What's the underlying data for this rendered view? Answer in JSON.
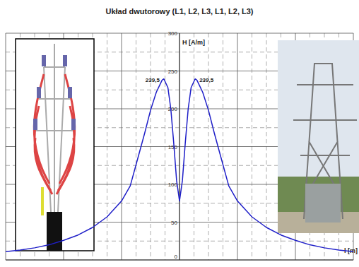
{
  "chart_data": {
    "type": "line",
    "title": "Układ dwutorowy (L1, L2, L3, L1, L2, L3)",
    "y_label": "H [A/m]",
    "x_label": "l [m]",
    "x": [
      -60,
      -55,
      -50,
      -45,
      -40,
      -35,
      -30,
      -25,
      -20,
      -17,
      -14,
      -12,
      -10,
      -8,
      -6,
      -5.4,
      -4,
      -3,
      -2,
      -1,
      0,
      1,
      2,
      3,
      4,
      5.4,
      6,
      8,
      10,
      12,
      14,
      17,
      20,
      25,
      30,
      35,
      40,
      45,
      50,
      55,
      60
    ],
    "series": [
      {
        "color": "#1f1fc8",
        "values": [
          11,
          13,
          16,
          20,
          26,
          33,
          43,
          57,
          78,
          98,
          140,
          168,
          198,
          222,
          238,
          239.5,
          228,
          200,
          155,
          105,
          78,
          105,
          155,
          200,
          228,
          239.5,
          238,
          222,
          198,
          168,
          140,
          98,
          78,
          57,
          43,
          33,
          26,
          20,
          16,
          13,
          11
        ]
      }
    ],
    "xlim": [
      -60,
      60
    ],
    "xticks": [
      -60,
      -40,
      -20,
      0,
      20,
      40,
      60
    ],
    "ylim": [
      0,
      300
    ],
    "yticks": [
      0,
      50,
      100,
      150,
      200,
      250,
      300
    ],
    "grid": true,
    "tick_labels": "y",
    "annotations": [
      {
        "text": "239,5",
        "x": -5.4,
        "y": 239.5
      },
      {
        "text": "239,5",
        "x": 5.4,
        "y": 239.5
      }
    ]
  }
}
